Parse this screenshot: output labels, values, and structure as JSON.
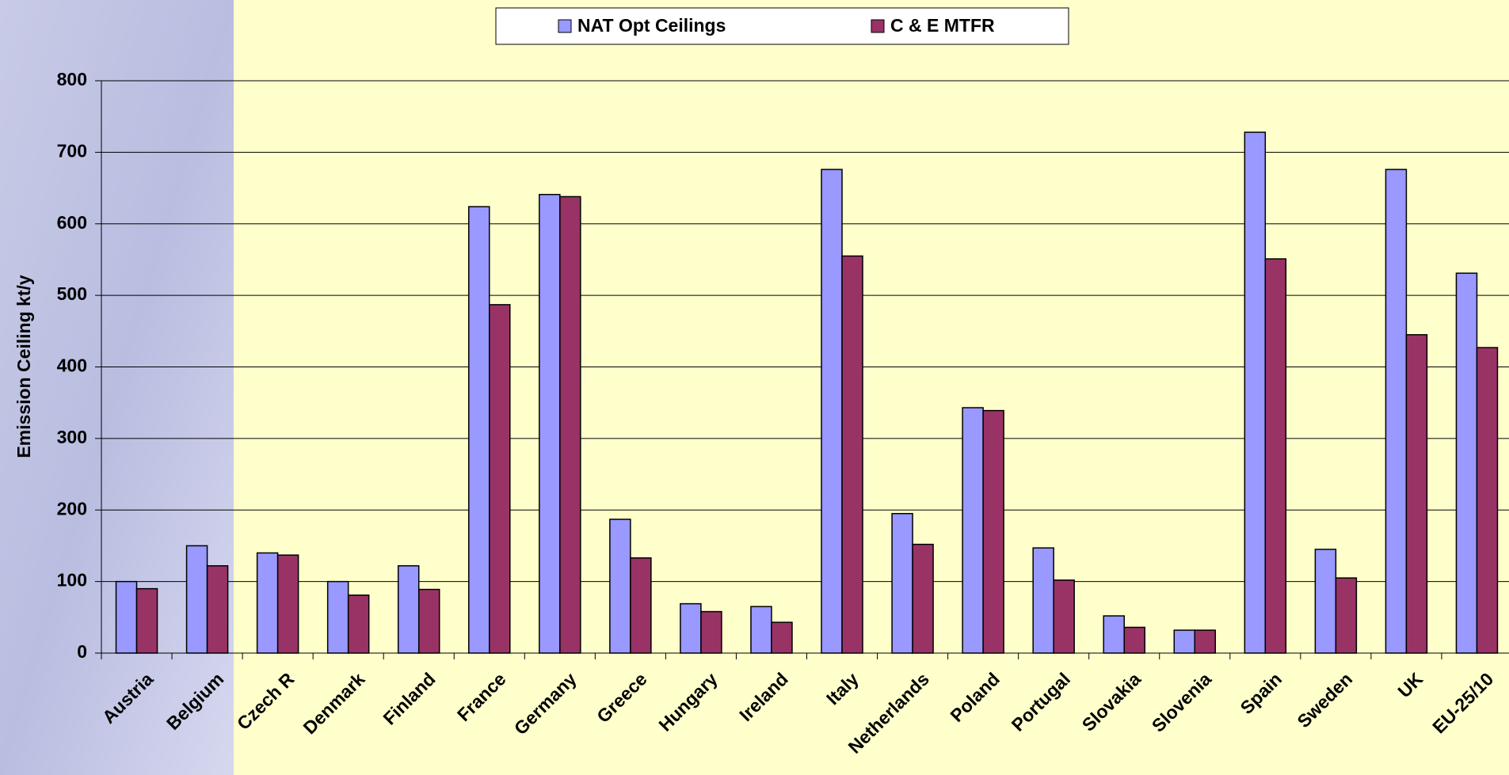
{
  "chart_data": {
    "type": "bar",
    "y_label": "Emission Ceiling kt/y",
    "categories": [
      "Austria",
      "Belgium",
      "Czech R",
      "Denmark",
      "Finland",
      "France",
      "Germany",
      "Greece",
      "Hungary",
      "Ireland",
      "Italy",
      "Netherlands",
      "Poland",
      "Portugal",
      "Slovakia",
      "Slovenia",
      "Spain",
      "Sweden",
      "UK",
      "EU-25/10"
    ],
    "series": [
      {
        "name": "NAT Opt Ceilings",
        "color": "#9999ff",
        "values": [
          100,
          150,
          140,
          100,
          122,
          624,
          641,
          187,
          69,
          65,
          676,
          195,
          343,
          147,
          52,
          32,
          728,
          145,
          676,
          531
        ]
      },
      {
        "name": "C & E MTFR",
        "color": "#993366",
        "values": [
          90,
          122,
          137,
          81,
          89,
          487,
          638,
          133,
          58,
          43,
          555,
          152,
          339,
          102,
          36,
          32,
          551,
          105,
          445,
          427
        ]
      }
    ],
    "ylim": [
      0,
      800
    ],
    "yticks": [
      0,
      100,
      200,
      300,
      400,
      500,
      600,
      700,
      800
    ],
    "grid": true
  }
}
